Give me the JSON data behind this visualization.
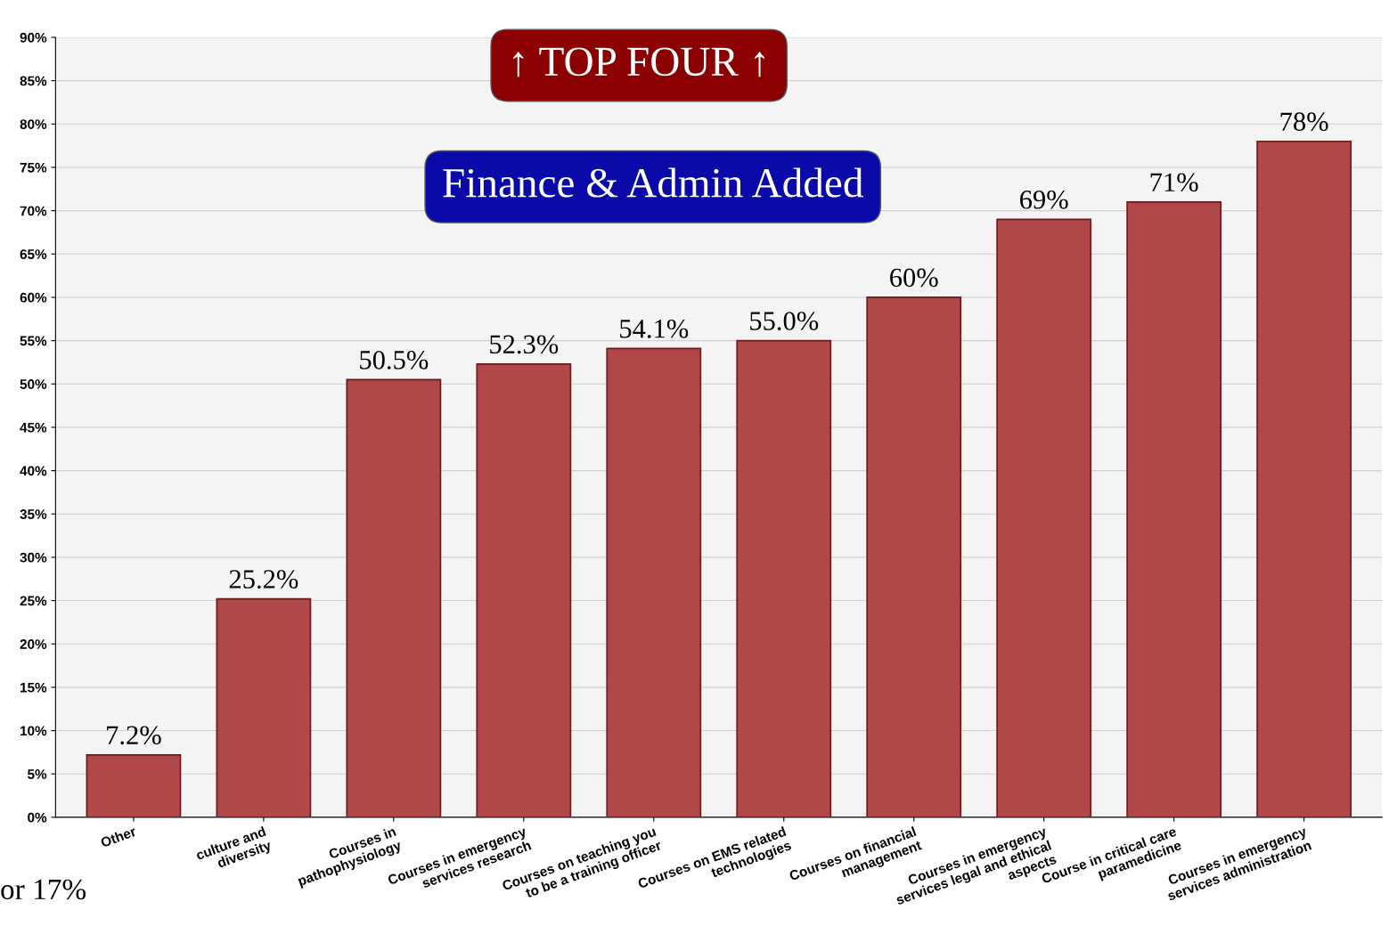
{
  "chart_data": {
    "type": "bar",
    "categories": [
      "Other",
      "culture and\ndiversity",
      "Courses in\npathophysiology",
      "Courses in emergency\nservices research",
      "Courses on teaching you\nto be a training officer",
      "Courses on EMS related\ntechnologies",
      "Courses on financial\nmanagement",
      "Courses in emergency\nservices legal and ethical\naspects",
      "Course in critical care\nparamedicine",
      "Courses in emergency\nservices administration"
    ],
    "values": [
      7.2,
      25.2,
      50.5,
      52.3,
      54.1,
      55.0,
      60,
      69,
      71,
      78
    ],
    "value_labels": [
      "7.2%",
      "25.2%",
      "50.5%",
      "52.3%",
      "54.1%",
      "55.0%",
      "60%",
      "69%",
      "71%",
      "78%"
    ],
    "color": "#b0484a",
    "ylim": [
      0,
      90
    ],
    "yticks": [
      {
        "value": 0,
        "label": "0%"
      },
      {
        "value": 5,
        "label": "5%"
      },
      {
        "value": 10,
        "label": "10%"
      },
      {
        "value": 15,
        "label": "15%"
      },
      {
        "value": 20,
        "label": "20%"
      },
      {
        "value": 25,
        "label": "25%"
      },
      {
        "value": 30,
        "label": "30%"
      },
      {
        "value": 35,
        "label": "35%"
      },
      {
        "value": 40,
        "label": "40%"
      },
      {
        "value": 45,
        "label": "45%"
      },
      {
        "value": 50,
        "label": "50%"
      },
      {
        "value": 55,
        "label": "55%"
      },
      {
        "value": 60,
        "label": "60%"
      },
      {
        "value": 65,
        "label": "65%"
      },
      {
        "value": 70,
        "label": "70%"
      },
      {
        "value": 75,
        "label": "75%"
      },
      {
        "value": 80,
        "label": "80%"
      },
      {
        "value": 85,
        "label": "85%"
      },
      {
        "value": 90,
        "label": "90%"
      }
    ],
    "grid": "y",
    "annotations": [
      "↑ TOP FOUR ↑",
      "Finance & Admin Added",
      "or 17%"
    ]
  }
}
